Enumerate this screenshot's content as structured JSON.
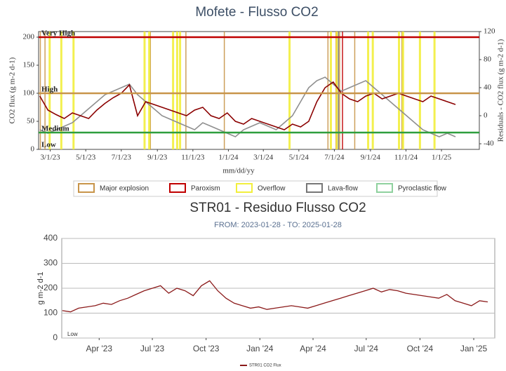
{
  "chart_data": [
    {
      "type": "line",
      "title": "Mofete - Flusso CO2",
      "x_label": "mm/dd/yy",
      "y_label": "CO2 flux (g m-2 d-1)",
      "y2_label": "Residuals - CO2 flux (g m-2 d-1)",
      "xlim": [
        "2023-02-09",
        "2025-03-07"
      ],
      "xticks": [
        {
          "value": "2023-03-01",
          "label": "3/1/23"
        },
        {
          "value": "2023-05-01",
          "label": "5/1/23"
        },
        {
          "value": "2023-07-01",
          "label": "7/1/23"
        },
        {
          "value": "2023-09-01",
          "label": "9/1/23"
        },
        {
          "value": "2023-11-01",
          "label": "11/1/23"
        },
        {
          "value": "2024-01-01",
          "label": "1/1/24"
        },
        {
          "value": "2024-03-01",
          "label": "3/1/24"
        },
        {
          "value": "2024-05-01",
          "label": "5/1/24"
        },
        {
          "value": "2024-07-01",
          "label": "7/1/24"
        },
        {
          "value": "2024-09-01",
          "label": "9/1/24"
        },
        {
          "value": "2024-11-01",
          "label": "11/1/24"
        },
        {
          "value": "2025-01-01",
          "label": "1/1/25"
        }
      ],
      "ylim": [
        0,
        210
      ],
      "yticks": [
        0,
        50,
        100,
        150,
        200
      ],
      "y2lim": [
        -48,
        120
      ],
      "y2ticks": [
        -40,
        0,
        40,
        80,
        120
      ],
      "thresholds": [
        {
          "label": "Very High",
          "value": 200,
          "color": "#c00000"
        },
        {
          "label": "High",
          "value": 100,
          "color": "#c8954a"
        },
        {
          "label": "Medium",
          "value": 30,
          "color": "#2e9e3e"
        },
        {
          "label": "Low",
          "value": 0,
          "color": "#888888"
        }
      ],
      "x": [
        "2023-01-28",
        "2023-02-11",
        "2023-02-25",
        "2023-03-11",
        "2023-03-25",
        "2023-04-08",
        "2023-04-22",
        "2023-05-06",
        "2023-05-20",
        "2023-06-03",
        "2023-06-17",
        "2023-07-01",
        "2023-07-15",
        "2023-07-29",
        "2023-08-12",
        "2023-08-26",
        "2023-09-09",
        "2023-09-23",
        "2023-10-07",
        "2023-10-21",
        "2023-11-04",
        "2023-11-18",
        "2023-12-02",
        "2023-12-16",
        "2023-12-30",
        "2024-01-13",
        "2024-01-27",
        "2024-02-10",
        "2024-02-24",
        "2024-03-09",
        "2024-03-23",
        "2024-04-06",
        "2024-04-20",
        "2024-05-04",
        "2024-05-18",
        "2024-06-01",
        "2024-06-15",
        "2024-06-29",
        "2024-07-13",
        "2024-07-27",
        "2024-08-10",
        "2024-08-24",
        "2024-09-07",
        "2024-09-21",
        "2024-10-05",
        "2024-10-19",
        "2024-11-02",
        "2024-11-16",
        "2024-11-30",
        "2024-12-14",
        "2024-12-28",
        "2025-01-11",
        "2025-01-25"
      ],
      "series": [
        {
          "color": "#8f8f8f",
          "axis": "y2",
          "values": [
            null,
            -20,
            -25,
            -20,
            -15,
            -10,
            0,
            10,
            20,
            30,
            35,
            40,
            45,
            30,
            20,
            10,
            0,
            -5,
            -10,
            -15,
            -20,
            -10,
            -15,
            -20,
            -25,
            -30,
            -20,
            -15,
            -10,
            -15,
            -20,
            -10,
            0,
            20,
            40,
            50,
            55,
            45,
            35,
            40,
            45,
            50,
            40,
            30,
            20,
            10,
            0,
            -10,
            -20,
            -25,
            -30,
            -25,
            -30
          ]
        },
        {
          "color": "#8b0000",
          "values": [
            null,
            95,
            70,
            62,
            55,
            65,
            60,
            55,
            70,
            82,
            92,
            100,
            115,
            60,
            85,
            80,
            75,
            70,
            65,
            60,
            70,
            75,
            60,
            55,
            65,
            50,
            45,
            55,
            50,
            45,
            40,
            35,
            45,
            40,
            50,
            85,
            110,
            120,
            100,
            90,
            85,
            95,
            100,
            90,
            95,
            100,
            95,
            90,
            85,
            95,
            90,
            85,
            80
          ]
        }
      ],
      "events": [
        {
          "name": "Major explosion",
          "color": "#c8954a",
          "dates": [
            "2023-02-12",
            "2023-02-20",
            "2023-08-20",
            "2023-10-20",
            "2023-12-25",
            "2024-06-20",
            "2024-07-10",
            "2024-08-05",
            "2024-10-25"
          ]
        },
        {
          "name": "Paroxism",
          "color": "#c00000",
          "dates": [
            "2024-07-04",
            "2024-07-15"
          ]
        },
        {
          "name": "Overflow",
          "color": "#f2ef3c",
          "dates": [
            "2023-02-28",
            "2023-03-20",
            "2023-04-10",
            "2023-08-10",
            "2023-08-18",
            "2023-09-28",
            "2023-10-05",
            "2023-10-10",
            "2024-04-15",
            "2024-06-25",
            "2024-07-05",
            "2024-08-28",
            "2024-09-05",
            "2024-10-20",
            "2024-10-27",
            "2024-11-25",
            "2024-12-20"
          ]
        },
        {
          "name": "Lava-flow",
          "color": "#777777",
          "dates": [
            "2024-07-08"
          ]
        },
        {
          "name": "Pyroclastic flow",
          "color": "#8fd19e",
          "dates": []
        }
      ]
    },
    {
      "type": "line",
      "title": "STR01 - Residuo Flusso CO2",
      "subtitle": "FROM: 2023-01-28 - TO: 2025-01-28",
      "y_label": "g m-2 d-1",
      "annotation": "Low",
      "xlim": [
        "2023-01-27",
        "2025-02-06"
      ],
      "xticks": [
        {
          "value": "2023-04-01",
          "label": "Apr '23"
        },
        {
          "value": "2023-07-01",
          "label": "Jul '23"
        },
        {
          "value": "2023-10-01",
          "label": "Oct '23"
        },
        {
          "value": "2024-01-01",
          "label": "Jan '24"
        },
        {
          "value": "2024-04-01",
          "label": "Apr '24"
        },
        {
          "value": "2024-07-01",
          "label": "Jul '24"
        },
        {
          "value": "2024-10-01",
          "label": "Oct '24"
        },
        {
          "value": "2025-01-01",
          "label": "Jan '25"
        }
      ],
      "ylim": [
        0,
        400
      ],
      "yticks": [
        0,
        100,
        200,
        300,
        400
      ],
      "grid": true,
      "x": [
        "2023-01-28",
        "2023-02-11",
        "2023-02-25",
        "2023-03-11",
        "2023-03-25",
        "2023-04-08",
        "2023-04-22",
        "2023-05-06",
        "2023-05-20",
        "2023-06-03",
        "2023-06-17",
        "2023-07-01",
        "2023-07-15",
        "2023-07-29",
        "2023-08-12",
        "2023-08-26",
        "2023-09-09",
        "2023-09-23",
        "2023-10-07",
        "2023-10-21",
        "2023-11-04",
        "2023-11-18",
        "2023-12-02",
        "2023-12-16",
        "2023-12-30",
        "2024-01-13",
        "2024-01-27",
        "2024-02-10",
        "2024-02-24",
        "2024-03-09",
        "2024-03-23",
        "2024-04-06",
        "2024-04-20",
        "2024-05-04",
        "2024-05-18",
        "2024-06-01",
        "2024-06-15",
        "2024-06-29",
        "2024-07-13",
        "2024-07-27",
        "2024-08-10",
        "2024-08-24",
        "2024-09-07",
        "2024-09-21",
        "2024-10-05",
        "2024-10-19",
        "2024-11-02",
        "2024-11-16",
        "2024-11-30",
        "2024-12-14",
        "2024-12-28",
        "2025-01-11",
        "2025-01-25"
      ],
      "series": [
        {
          "name": "STR01 CO2 Flux",
          "color": "#8b1a1a",
          "values": [
            110,
            105,
            120,
            125,
            130,
            140,
            135,
            150,
            160,
            175,
            190,
            200,
            210,
            180,
            200,
            190,
            170,
            210,
            230,
            190,
            160,
            140,
            130,
            120,
            125,
            115,
            120,
            125,
            130,
            125,
            120,
            130,
            140,
            150,
            160,
            170,
            180,
            190,
            200,
            185,
            195,
            190,
            180,
            175,
            170,
            165,
            160,
            175,
            150,
            140,
            130,
            150,
            145
          ]
        }
      ]
    }
  ]
}
